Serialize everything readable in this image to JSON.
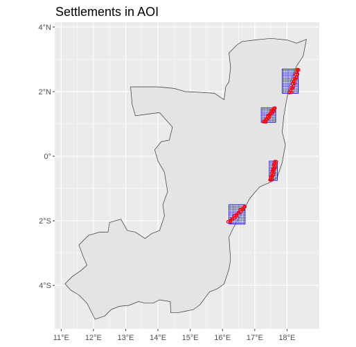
{
  "title": "Settlements in AOI",
  "map": {
    "x_range": [
      10.8,
      19.0
    ],
    "y_range": [
      -5.35,
      4.15
    ],
    "x_ticks": [
      {
        "value": 11,
        "label": "11°E"
      },
      {
        "value": 12,
        "label": "12°E"
      },
      {
        "value": 13,
        "label": "13°E"
      },
      {
        "value": 14,
        "label": "14°E"
      },
      {
        "value": 15,
        "label": "15°E"
      },
      {
        "value": 16,
        "label": "16°E"
      },
      {
        "value": 17,
        "label": "17°E"
      },
      {
        "value": 18,
        "label": "18°E"
      }
    ],
    "y_ticks": [
      {
        "value": 4,
        "label": "4°N"
      },
      {
        "value": 2,
        "label": "2°N"
      },
      {
        "value": 0,
        "label": "0°"
      },
      {
        "value": -2,
        "label": "2°S"
      },
      {
        "value": -4,
        "label": "4°S"
      }
    ],
    "colors": {
      "panel": "#ebebeb",
      "grid": "#ffffff",
      "country_fill": "#e4e4e4",
      "country_stroke": "#333333",
      "grid_cells": "#0000cc",
      "settlements": "#ff0000"
    },
    "country_outline": [
      [
        11.12,
        -3.95
      ],
      [
        11.35,
        -3.72
      ],
      [
        11.6,
        -3.55
      ],
      [
        11.8,
        -3.38
      ],
      [
        11.68,
        -3.1
      ],
      [
        11.55,
        -2.75
      ],
      [
        11.85,
        -2.45
      ],
      [
        12.2,
        -2.35
      ],
      [
        12.45,
        -2.35
      ],
      [
        12.5,
        -2.05
      ],
      [
        12.85,
        -1.95
      ],
      [
        13.05,
        -2.3
      ],
      [
        13.3,
        -2.35
      ],
      [
        13.6,
        -2.55
      ],
      [
        13.8,
        -2.4
      ],
      [
        14.05,
        -2.3
      ],
      [
        14.2,
        -1.85
      ],
      [
        14.15,
        -1.5
      ],
      [
        14.3,
        -1.1
      ],
      [
        14.2,
        -0.5
      ],
      [
        14.0,
        -0.15
      ],
      [
        13.9,
        0.2
      ],
      [
        14.1,
        0.45
      ],
      [
        14.35,
        0.5
      ],
      [
        14.45,
        0.9
      ],
      [
        14.05,
        1.35
      ],
      [
        13.65,
        1.3
      ],
      [
        13.3,
        1.25
      ],
      [
        13.2,
        1.6
      ],
      [
        13.15,
        2.15
      ],
      [
        13.6,
        2.15
      ],
      [
        14.0,
        2.15
      ],
      [
        14.5,
        2.1
      ],
      [
        14.85,
        2.0
      ],
      [
        15.3,
        1.98
      ],
      [
        15.75,
        1.95
      ],
      [
        16.05,
        1.75
      ],
      [
        16.1,
        2.15
      ],
      [
        16.2,
        2.3
      ],
      [
        16.25,
        2.75
      ],
      [
        16.2,
        3.2
      ],
      [
        16.45,
        3.45
      ],
      [
        16.6,
        3.55
      ],
      [
        17.0,
        3.6
      ],
      [
        17.5,
        3.65
      ],
      [
        18.0,
        3.6
      ],
      [
        18.3,
        3.5
      ],
      [
        18.6,
        3.62
      ],
      [
        18.5,
        3.1
      ],
      [
        18.3,
        2.8
      ],
      [
        18.1,
        2.3
      ],
      [
        18.0,
        1.8
      ],
      [
        17.9,
        1.25
      ],
      [
        17.85,
        0.75
      ],
      [
        17.95,
        0.35
      ],
      [
        17.85,
        -0.2
      ],
      [
        17.7,
        -0.65
      ],
      [
        17.5,
        -0.8
      ],
      [
        17.15,
        -0.95
      ],
      [
        16.85,
        -1.3
      ],
      [
        16.6,
        -1.75
      ],
      [
        16.35,
        -2.2
      ],
      [
        16.2,
        -2.5
      ],
      [
        16.25,
        -3.2
      ],
      [
        16.2,
        -3.5
      ],
      [
        16.05,
        -3.95
      ],
      [
        15.85,
        -4.1
      ],
      [
        15.6,
        -4.2
      ],
      [
        15.45,
        -4.4
      ],
      [
        15.3,
        -4.6
      ],
      [
        15.1,
        -4.75
      ],
      [
        14.85,
        -4.8
      ],
      [
        14.6,
        -4.85
      ],
      [
        14.4,
        -4.85
      ],
      [
        14.38,
        -4.5
      ],
      [
        14.05,
        -4.45
      ],
      [
        13.85,
        -4.55
      ],
      [
        13.6,
        -4.55
      ],
      [
        13.4,
        -4.5
      ],
      [
        13.1,
        -4.62
      ],
      [
        12.8,
        -4.65
      ],
      [
        12.55,
        -4.75
      ],
      [
        12.35,
        -4.95
      ],
      [
        12.05,
        -5.05
      ],
      [
        11.8,
        -4.55
      ],
      [
        11.55,
        -4.3
      ],
      [
        11.3,
        -4.15
      ]
    ],
    "settlement_clusters": [
      {
        "x_min": 17.85,
        "x_max": 18.35,
        "y_min": 1.95,
        "y_max": 2.7,
        "line": [
          [
            18.1,
            1.95
          ],
          [
            18.35,
            2.7
          ]
        ]
      },
      {
        "x_min": 17.2,
        "x_max": 17.65,
        "y_min": 1.05,
        "y_max": 1.5,
        "line": [
          [
            17.3,
            1.05
          ],
          [
            17.62,
            1.5
          ]
        ]
      },
      {
        "x_min": 17.45,
        "x_max": 17.7,
        "y_min": -0.75,
        "y_max": -0.15,
        "line": [
          [
            17.5,
            -0.75
          ],
          [
            17.65,
            -0.15
          ]
        ]
      },
      {
        "x_min": 16.2,
        "x_max": 16.7,
        "y_min": -2.1,
        "y_max": -1.5,
        "line": [
          [
            16.2,
            -2.05
          ],
          [
            16.7,
            -1.55
          ]
        ]
      }
    ]
  }
}
